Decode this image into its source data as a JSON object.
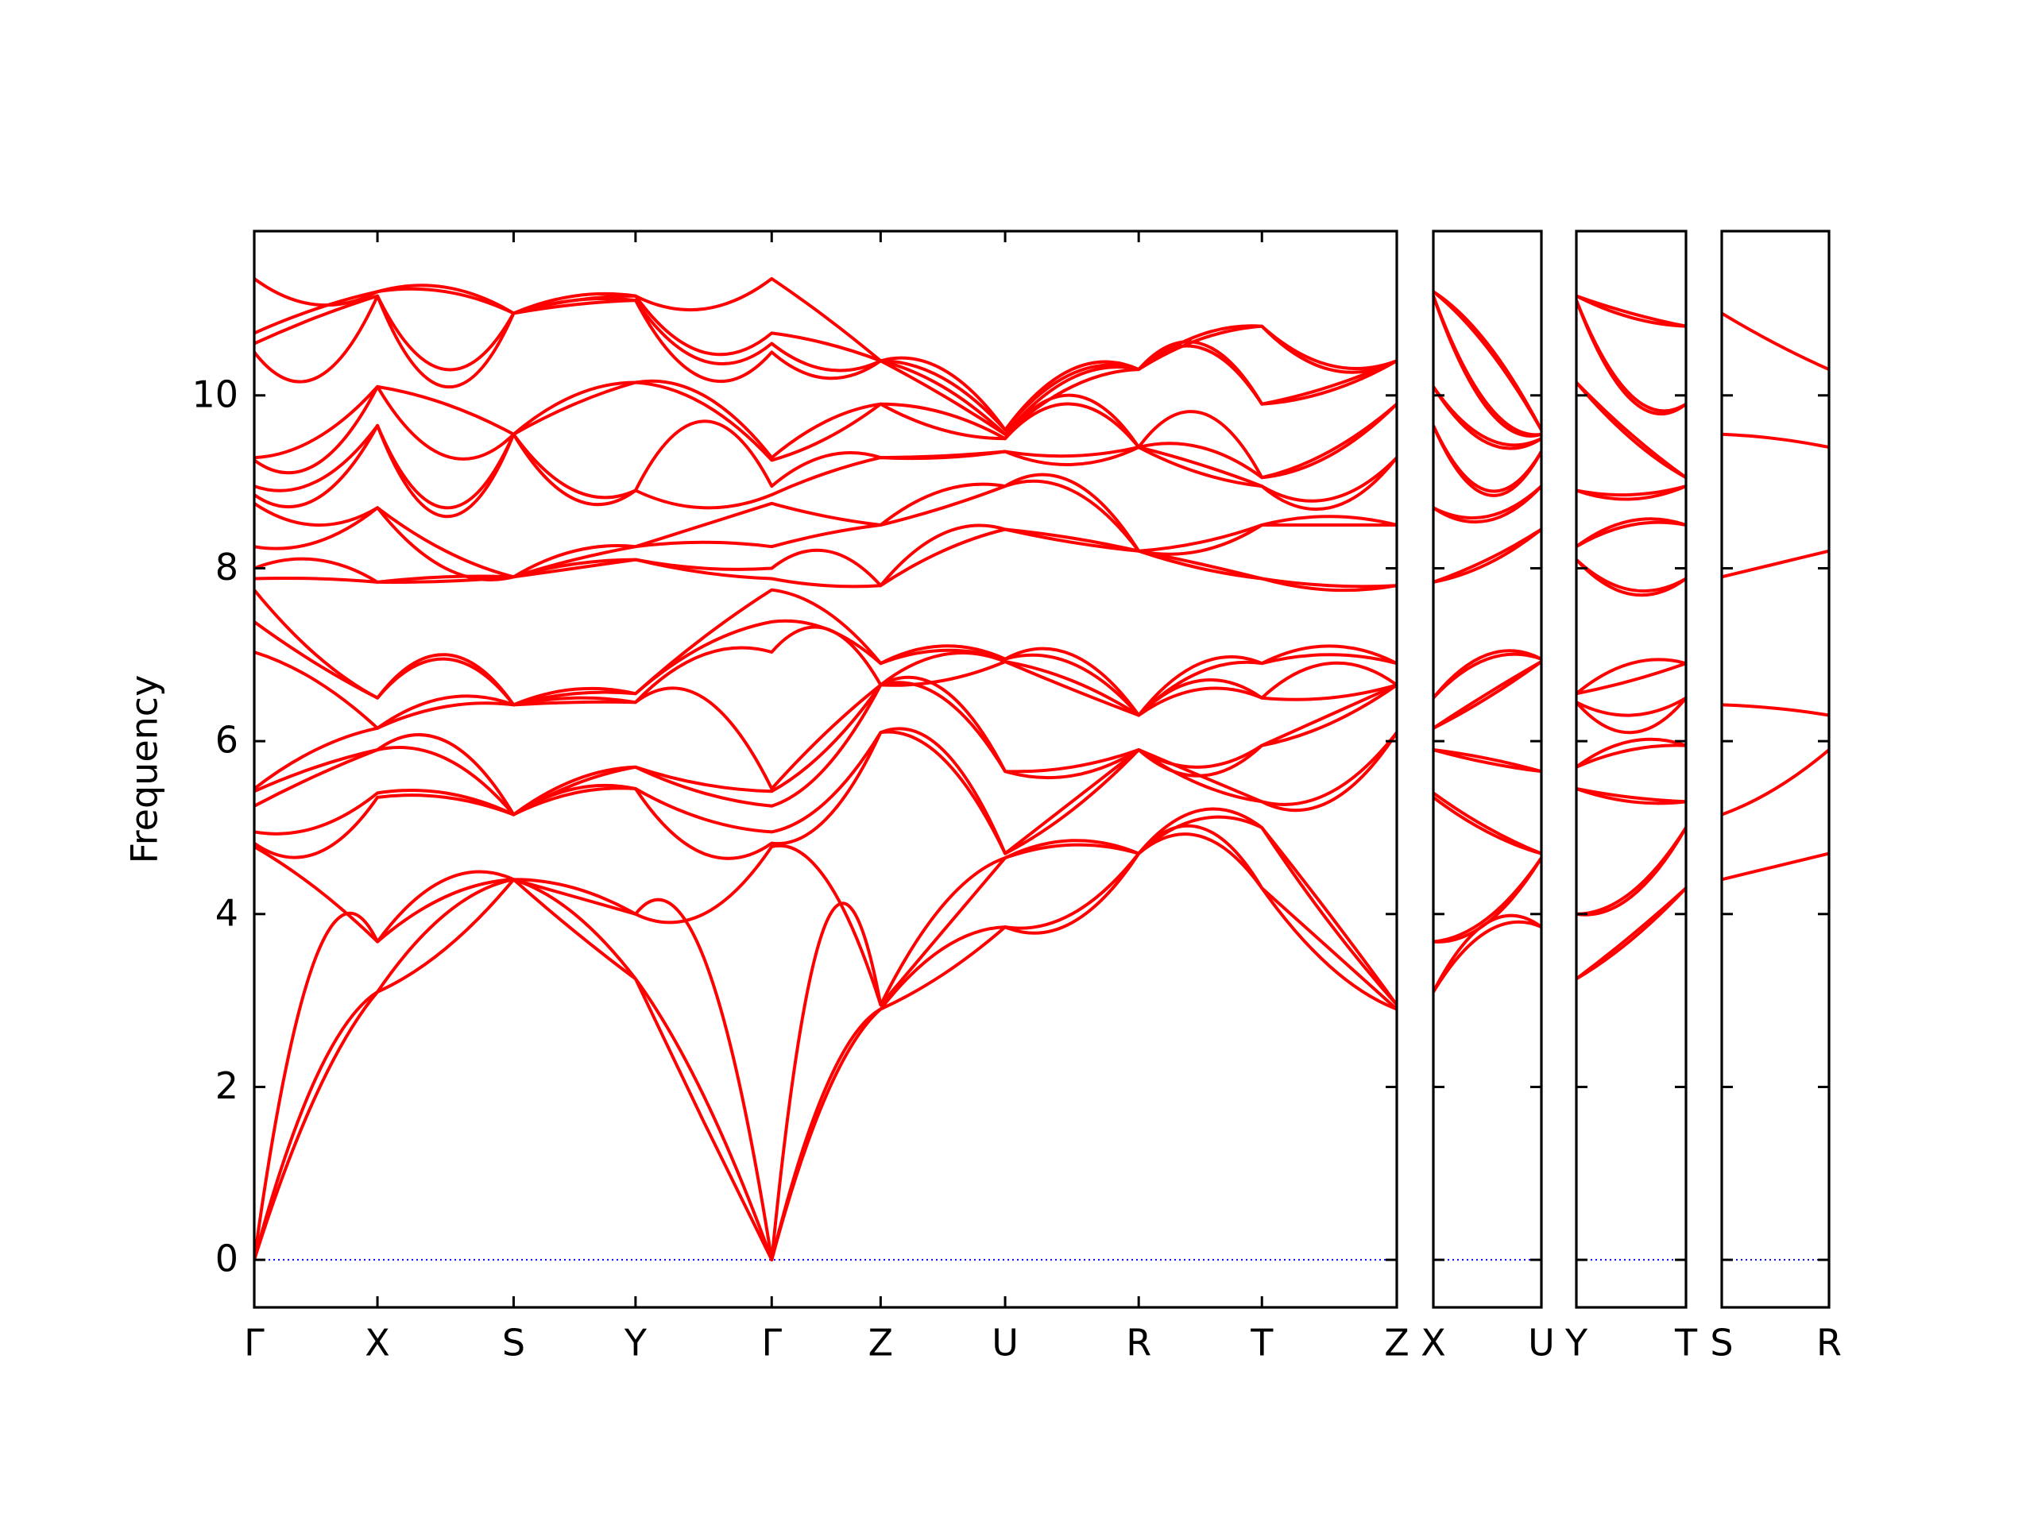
{
  "chart_data": [
    {
      "type": "line",
      "ylabel": "Frequency",
      "ytick_labels": true,
      "color": "#ff0000",
      "hlines": [
        0
      ],
      "hline_color": "#0000ff",
      "xlim": [
        0,
        8.81
      ],
      "ylim": [
        -0.55,
        11.9
      ],
      "yticks": [
        0,
        2,
        4,
        6,
        8,
        10
      ],
      "xticks": [
        {
          "value": 0,
          "label": "Γ"
        },
        {
          "value": 0.95,
          "label": "X"
        },
        {
          "value": 2.0,
          "label": "S"
        },
        {
          "value": 2.94,
          "label": "Y"
        },
        {
          "value": 3.99,
          "label": "Γ"
        },
        {
          "value": 4.83,
          "label": "Z"
        },
        {
          "value": 5.79,
          "label": "U"
        },
        {
          "value": 6.82,
          "label": "R"
        },
        {
          "value": 7.77,
          "label": "T"
        },
        {
          "value": 8.81,
          "label": "Z"
        }
      ],
      "x": [
        0,
        0.475,
        0.95,
        1.475,
        2.0,
        2.47,
        2.94,
        3.465,
        3.99,
        4.41,
        4.83,
        5.31,
        5.79,
        6.305,
        6.82,
        7.295,
        7.77,
        8.29,
        8.81
      ],
      "series": [
        {
          "values": [
            0,
            1.9,
            3.1,
            3.6,
            4.4,
            3.8,
            3.25,
            1.6,
            0,
            1.9,
            2.9,
            3.3,
            3.85,
            3.9,
            4.7,
            4.9,
            4.3,
            3.4,
            2.9
          ]
        },
        {
          "values": [
            0,
            2.1,
            3.1,
            4.0,
            4.4,
            4.0,
            3.25,
            1.9,
            0,
            2.0,
            2.9,
            3.6,
            3.85,
            4.0,
            4.7,
            5.0,
            4.3,
            3.6,
            2.9
          ]
        },
        {
          "values": [
            0,
            3.5,
            3.68,
            4.2,
            4.4,
            4.2,
            4.0,
            3.5,
            0,
            3.9,
            2.95,
            3.8,
            4.65,
            4.8,
            4.7,
            5.1,
            5.0,
            3.9,
            2.95
          ]
        },
        {
          "values": [
            4.78,
            4.3,
            3.68,
            4.4,
            4.4,
            4.3,
            4.0,
            4.0,
            4.78,
            4.4,
            2.95,
            4.1,
            4.65,
            4.85,
            4.7,
            5.2,
            5.0,
            4.0,
            2.95
          ]
        },
        {
          "values": [
            4.82,
            4.7,
            5.35,
            5.35,
            5.15,
            5.4,
            5.45,
            4.7,
            4.82,
            5.1,
            6.1,
            5.8,
            4.7,
            5.2,
            5.9,
            5.5,
            5.3,
            5.3,
            6.1
          ]
        },
        {
          "values": [
            4.95,
            5.0,
            5.4,
            5.4,
            5.15,
            5.45,
            5.45,
            5.1,
            4.95,
            5.3,
            6.1,
            5.9,
            4.7,
            5.3,
            5.9,
            5.6,
            5.3,
            5.4,
            6.1
          ]
        },
        {
          "values": [
            5.25,
            5.6,
            5.9,
            5.8,
            5.15,
            5.5,
            5.7,
            5.4,
            5.25,
            5.7,
            6.65,
            6.5,
            5.65,
            5.6,
            5.9,
            5.6,
            5.95,
            6.2,
            6.65
          ]
        },
        {
          "values": [
            5.42,
            5.7,
            5.9,
            6.0,
            5.15,
            5.55,
            5.7,
            5.5,
            5.42,
            5.9,
            6.65,
            6.6,
            5.65,
            5.7,
            5.9,
            5.7,
            5.95,
            6.3,
            6.65
          ]
        },
        {
          "values": [
            5.45,
            5.9,
            6.15,
            6.4,
            6.42,
            6.45,
            6.45,
            6.5,
            5.45,
            6.1,
            6.65,
            6.7,
            6.92,
            6.6,
            6.3,
            6.6,
            6.5,
            6.5,
            6.65
          ]
        },
        {
          "values": [
            7.03,
            6.7,
            6.15,
            6.5,
            6.42,
            6.5,
            6.45,
            7.0,
            7.03,
            7.3,
            6.65,
            7.0,
            6.92,
            6.7,
            6.3,
            6.7,
            6.5,
            6.9,
            6.65
          ]
        },
        {
          "values": [
            7.38,
            6.9,
            6.5,
            6.95,
            6.42,
            6.55,
            6.55,
            7.1,
            7.38,
            7.3,
            6.9,
            7.05,
            6.95,
            6.9,
            6.3,
            6.8,
            6.9,
            7.0,
            6.9
          ]
        },
        {
          "values": [
            7.75,
            7.0,
            6.5,
            7.0,
            6.42,
            6.6,
            6.55,
            7.2,
            7.75,
            7.5,
            6.9,
            7.1,
            6.95,
            7.0,
            6.3,
            6.9,
            6.9,
            7.1,
            6.9
          ]
        },
        {
          "values": [
            7.88,
            7.88,
            7.84,
            7.85,
            7.9,
            8.0,
            8.1,
            7.95,
            7.88,
            7.8,
            7.8,
            8.2,
            8.45,
            8.3,
            8.2,
            8.0,
            7.88,
            7.75,
            7.8
          ]
        },
        {
          "values": [
            8.0,
            8.1,
            7.84,
            7.9,
            7.9,
            8.05,
            8.1,
            8.0,
            8.0,
            8.2,
            7.8,
            8.4,
            8.45,
            8.35,
            8.2,
            8.05,
            7.88,
            7.8,
            7.8
          ]
        },
        {
          "values": [
            8.25,
            8.3,
            8.7,
            8.0,
            7.9,
            8.1,
            8.25,
            8.3,
            8.25,
            8.4,
            8.5,
            8.7,
            8.95,
            8.9,
            8.2,
            8.2,
            8.5,
            8.5,
            8.5
          ]
        },
        {
          "values": [
            8.75,
            8.5,
            8.7,
            8.2,
            7.9,
            8.2,
            8.25,
            8.5,
            8.75,
            8.6,
            8.5,
            8.9,
            8.95,
            9.0,
            8.2,
            8.3,
            8.5,
            8.6,
            8.5
          ]
        },
        {
          "values": [
            8.85,
            8.8,
            9.65,
            8.6,
            9.55,
            8.8,
            8.9,
            8.7,
            8.85,
            9.1,
            9.28,
            9.28,
            9.35,
            9.2,
            9.4,
            9.1,
            8.95,
            8.7,
            9.28
          ]
        },
        {
          "values": [
            8.95,
            9.0,
            9.65,
            8.7,
            9.55,
            8.9,
            8.9,
            9.7,
            8.95,
            9.3,
            9.28,
            9.3,
            9.35,
            9.3,
            9.4,
            9.2,
            8.95,
            8.8,
            9.28
          ]
        },
        {
          "values": [
            9.25,
            9.2,
            10.1,
            9.3,
            9.55,
            9.9,
            10.15,
            9.9,
            9.25,
            9.5,
            9.9,
            9.6,
            9.5,
            9.9,
            9.4,
            9.4,
            9.05,
            9.3,
            9.9
          ]
        },
        {
          "values": [
            9.28,
            9.5,
            10.1,
            9.9,
            9.55,
            10.0,
            10.15,
            10.0,
            9.28,
            9.7,
            9.9,
            9.8,
            9.5,
            10.0,
            9.4,
            9.8,
            9.05,
            9.35,
            9.9
          ]
        },
        {
          "values": [
            10.5,
            10.2,
            11.15,
            10.1,
            10.95,
            11.05,
            11.1,
            10.2,
            10.5,
            10.2,
            10.4,
            10.0,
            9.55,
            10.1,
            10.3,
            10.55,
            9.9,
            10.05,
            10.4
          ]
        },
        {
          "values": [
            10.6,
            10.9,
            11.15,
            10.3,
            10.95,
            11.1,
            11.1,
            10.4,
            10.6,
            10.3,
            10.4,
            10.1,
            9.55,
            10.2,
            10.3,
            10.6,
            9.9,
            10.1,
            10.4
          ]
        },
        {
          "values": [
            10.72,
            11.0,
            11.2,
            11.2,
            10.95,
            11.1,
            11.15,
            10.5,
            10.72,
            10.6,
            10.4,
            10.2,
            9.6,
            10.25,
            10.3,
            10.65,
            10.8,
            10.3,
            10.4
          ]
        },
        {
          "values": [
            11.35,
            11.05,
            11.2,
            11.25,
            10.95,
            11.15,
            11.15,
            11.0,
            11.35,
            10.9,
            10.4,
            10.3,
            9.6,
            10.3,
            10.3,
            10.7,
            10.8,
            10.35,
            10.4
          ]
        }
      ]
    },
    {
      "type": "line",
      "ytick_labels": false,
      "color": "#ff0000",
      "hlines": [
        0
      ],
      "hline_color": "#0000ff",
      "xlim": [
        0,
        0.83
      ],
      "ylim": [
        -0.55,
        11.9
      ],
      "yticks": [
        0,
        2,
        4,
        6,
        8,
        10
      ],
      "xticks": [
        {
          "value": 0,
          "label": "X"
        },
        {
          "value": 0.83,
          "label": "U"
        }
      ],
      "x": [
        0,
        0.415,
        0.83
      ],
      "series": [
        {
          "values": [
            3.1,
            3.8,
            3.85
          ]
        },
        {
          "values": [
            3.1,
            3.9,
            3.85
          ]
        },
        {
          "values": [
            3.68,
            3.9,
            4.65
          ]
        },
        {
          "values": [
            3.68,
            3.95,
            4.65
          ]
        },
        {
          "values": [
            5.35,
            4.95,
            4.7
          ]
        },
        {
          "values": [
            5.4,
            5.0,
            4.7
          ]
        },
        {
          "values": [
            5.9,
            5.75,
            5.65
          ]
        },
        {
          "values": [
            5.9,
            5.8,
            5.65
          ]
        },
        {
          "values": [
            6.15,
            6.5,
            6.92
          ]
        },
        {
          "values": [
            6.15,
            6.55,
            6.92
          ]
        },
        {
          "values": [
            6.5,
            6.95,
            6.95
          ]
        },
        {
          "values": [
            6.5,
            7.0,
            6.95
          ]
        },
        {
          "values": [
            7.84,
            8.05,
            8.45
          ]
        },
        {
          "values": [
            7.84,
            8.1,
            8.45
          ]
        },
        {
          "values": [
            8.7,
            8.55,
            8.95
          ]
        },
        {
          "values": [
            8.7,
            8.6,
            8.95
          ]
        },
        {
          "values": [
            9.65,
            8.85,
            9.35
          ]
        },
        {
          "values": [
            9.65,
            8.9,
            9.35
          ]
        },
        {
          "values": [
            10.1,
            9.45,
            9.5
          ]
        },
        {
          "values": [
            10.1,
            9.5,
            9.5
          ]
        },
        {
          "values": [
            11.15,
            9.85,
            9.55
          ]
        },
        {
          "values": [
            11.15,
            9.9,
            9.55
          ]
        },
        {
          "values": [
            11.2,
            10.55,
            9.6
          ]
        },
        {
          "values": [
            11.2,
            10.6,
            9.6
          ]
        }
      ]
    },
    {
      "type": "line",
      "ytick_labels": false,
      "color": "#ff0000",
      "hlines": [
        0
      ],
      "hline_color": "#0000ff",
      "xlim": [
        0,
        0.85
      ],
      "ylim": [
        -0.55,
        11.9
      ],
      "yticks": [
        0,
        2,
        4,
        6,
        8,
        10
      ],
      "xticks": [
        {
          "value": 0,
          "label": "Y"
        },
        {
          "value": 0.85,
          "label": "T"
        }
      ],
      "x": [
        0,
        0.425,
        0.85
      ],
      "series": [
        {
          "values": [
            3.25,
            3.7,
            4.3
          ]
        },
        {
          "values": [
            3.25,
            3.75,
            4.3
          ]
        },
        {
          "values": [
            4.0,
            4.2,
            5.0
          ]
        },
        {
          "values": [
            4.0,
            4.25,
            5.0
          ]
        },
        {
          "values": [
            5.45,
            5.3,
            5.3
          ]
        },
        {
          "values": [
            5.45,
            5.35,
            5.3
          ]
        },
        {
          "values": [
            5.7,
            5.9,
            5.95
          ]
        },
        {
          "values": [
            5.7,
            6.0,
            5.95
          ]
        },
        {
          "values": [
            6.45,
            6.1,
            6.5
          ]
        },
        {
          "values": [
            6.45,
            6.3,
            6.5
          ]
        },
        {
          "values": [
            6.55,
            6.7,
            6.9
          ]
        },
        {
          "values": [
            6.55,
            6.9,
            6.9
          ]
        },
        {
          "values": [
            8.1,
            7.7,
            7.88
          ]
        },
        {
          "values": [
            8.1,
            7.75,
            7.88
          ]
        },
        {
          "values": [
            8.25,
            8.5,
            8.5
          ]
        },
        {
          "values": [
            8.25,
            8.55,
            8.5
          ]
        },
        {
          "values": [
            8.9,
            8.8,
            8.95
          ]
        },
        {
          "values": [
            8.9,
            8.85,
            8.95
          ]
        },
        {
          "values": [
            10.15,
            9.5,
            9.05
          ]
        },
        {
          "values": [
            10.15,
            9.55,
            9.05
          ]
        },
        {
          "values": [
            11.1,
            9.95,
            9.9
          ]
        },
        {
          "values": [
            11.1,
            10.0,
            9.9
          ]
        },
        {
          "values": [
            11.15,
            10.9,
            10.8
          ]
        },
        {
          "values": [
            11.15,
            10.95,
            10.8
          ]
        }
      ]
    },
    {
      "type": "line",
      "ytick_labels": false,
      "color": "#ff0000",
      "hlines": [
        0
      ],
      "hline_color": "#0000ff",
      "xlim": [
        0,
        0.83
      ],
      "ylim": [
        -0.55,
        11.9
      ],
      "yticks": [
        0,
        2,
        4,
        6,
        8,
        10
      ],
      "xticks": [
        {
          "value": 0,
          "label": "S"
        },
        {
          "value": 0.83,
          "label": "R"
        }
      ],
      "x": [
        0,
        0.415,
        0.83
      ],
      "series": [
        {
          "values": [
            4.4,
            4.55,
            4.7
          ]
        },
        {
          "values": [
            5.15,
            5.45,
            5.9
          ]
        },
        {
          "values": [
            6.42,
            6.38,
            6.3
          ]
        },
        {
          "values": [
            7.9,
            8.05,
            8.2
          ]
        },
        {
          "values": [
            9.55,
            9.5,
            9.4
          ]
        },
        {
          "values": [
            10.95,
            10.6,
            10.3
          ]
        }
      ]
    }
  ]
}
